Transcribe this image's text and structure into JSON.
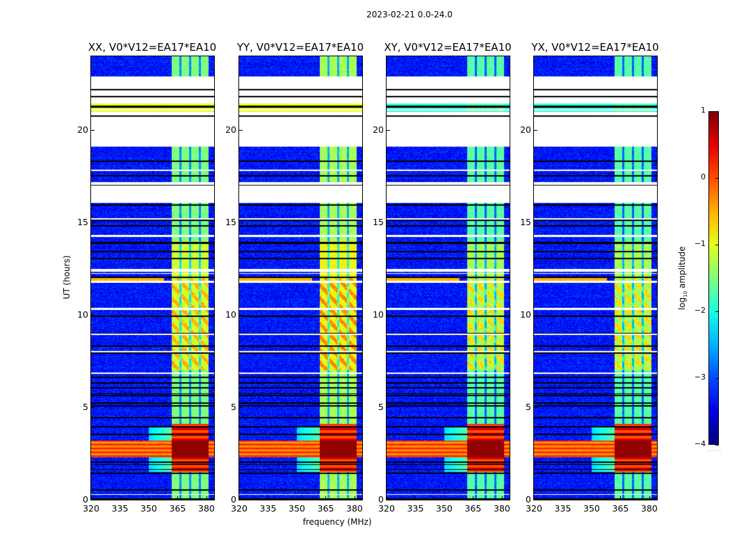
{
  "figure_title": "2023-02-21 0.0-24.0",
  "chart_data": {
    "type": "heatmap",
    "xlabel": "frequency (MHz)",
    "ylabel": "UT (hours)",
    "xlim": [
      320,
      384
    ],
    "ylim": [
      0,
      24
    ],
    "xticks": [
      320,
      335,
      350,
      365,
      380
    ],
    "yticks": [
      0,
      5,
      10,
      15,
      20
    ],
    "panels": [
      {
        "title": "XX, V0*V12=EA17*EA10",
        "pol": "XX"
      },
      {
        "title": "YY, V0*V12=EA17*EA10",
        "pol": "YY"
      },
      {
        "title": "XY, V0*V12=EA17*EA10",
        "pol": "XY"
      },
      {
        "title": "YX, V0*V12=EA17*EA10",
        "pol": "YX"
      }
    ],
    "colorbar": {
      "label_prefix": "log",
      "label_sub": "10",
      "label_suffix": " amplitude",
      "colormap": "jet",
      "clim": [
        -4,
        1
      ],
      "ticks": [
        1,
        0,
        -1,
        -2,
        -3,
        -4
      ],
      "tick_labels": [
        "1",
        "0",
        "−1",
        "−2",
        "−3",
        "−4"
      ],
      "footer": "......"
    },
    "background_level": -3.3,
    "bright_band_mhz": [
      362,
      381
    ],
    "band_gaps_mhz": [
      366.5,
      371.5,
      376.5
    ],
    "rfi_hours": [
      2.3,
      3.2
    ],
    "flagged_hours": [
      [
        16.05,
        17.2
      ],
      [
        19.1,
        21.0
      ],
      [
        21.45,
        22.9
      ]
    ]
  }
}
